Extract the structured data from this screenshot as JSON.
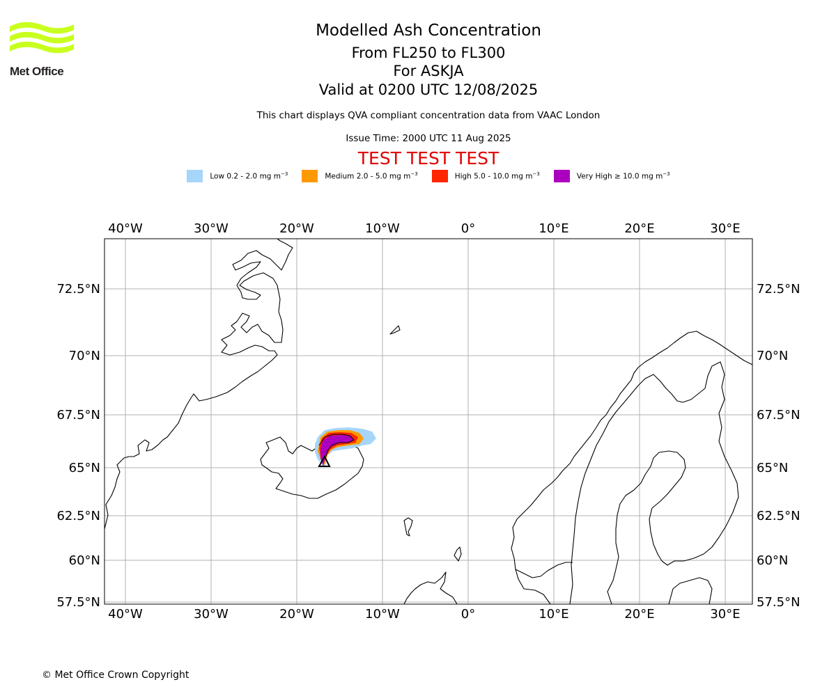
{
  "logo": {
    "text": "Met Office",
    "color": "#c8ff1e"
  },
  "header": {
    "title": "Modelled Ash Concentration",
    "levels": "From FL250 to FL300",
    "volcano": "For ASKJA",
    "valid": "Valid at 0200 UTC 12/08/2025",
    "note": "This chart displays QVA compliant concentration data from VAAC London",
    "issue": "Issue Time: 2000 UTC 11 Aug 2025",
    "test_banner": "TEST TEST TEST"
  },
  "legend": [
    {
      "label": "Low 0.2 - 2.0 mg m",
      "sup": "−3",
      "color": "#a6d5fa"
    },
    {
      "label": "Medium 2.0 - 5.0 mg m",
      "sup": "−3",
      "color": "#ff9900"
    },
    {
      "label": "High 5.0 - 10.0 mg m",
      "sup": "−3",
      "color": "#ff2600"
    },
    {
      "label": "Very High  ≥  10.0 mg m",
      "sup": "−3",
      "color": "#ab00bd"
    }
  ],
  "map": {
    "lon_labels": [
      "40°W",
      "30°W",
      "20°W",
      "10°W",
      "0°",
      "10°E",
      "20°E",
      "30°E"
    ],
    "lat_labels": [
      "72.5°N",
      "70°N",
      "67.5°N",
      "65°N",
      "62.5°N",
      "60°N",
      "57.5°N"
    ],
    "volcano_marker": "triangle"
  },
  "footer": {
    "copyright": "© Met Office Crown Copyright"
  }
}
